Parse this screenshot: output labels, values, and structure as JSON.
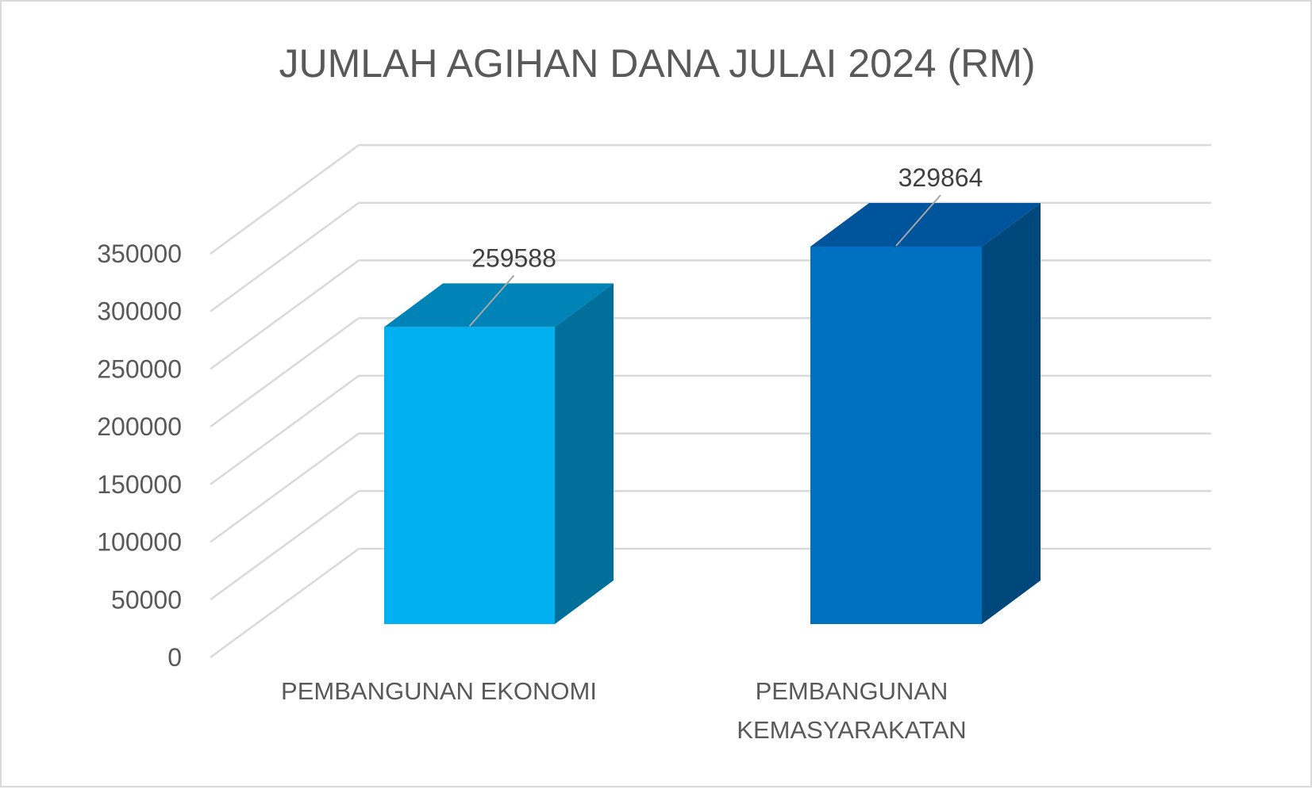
{
  "chart_data": {
    "type": "bar",
    "title": "JUMLAH AGIHAN DANA JULAI 2024 (RM)",
    "categories": [
      "PEMBANGUNAN EKONOMI",
      "PEMBANGUNAN KEMASYARAKATAN"
    ],
    "category_lines": [
      [
        "PEMBANGUNAN EKONOMI"
      ],
      [
        "PEMBANGUNAN",
        "KEMASYARAKATAN"
      ]
    ],
    "values": [
      259588,
      329864
    ],
    "data_labels": [
      "259588",
      "329864"
    ],
    "ylim": [
      0,
      350000
    ],
    "yticks": [
      0,
      50000,
      100000,
      150000,
      200000,
      250000,
      300000,
      350000
    ],
    "ytick_labels": [
      "0",
      "50000",
      "100000",
      "150000",
      "200000",
      "250000",
      "300000",
      "350000"
    ],
    "grid": true,
    "legend": false,
    "three_d": true,
    "bar_colors": [
      {
        "front": "#00b0f0",
        "side": "#006f99",
        "top": "#0083b6"
      },
      {
        "front": "#0070c0",
        "side": "#00487c",
        "top": "#00549b"
      }
    ],
    "grid_color": "#d9d9d9",
    "text_color": "#595959"
  }
}
